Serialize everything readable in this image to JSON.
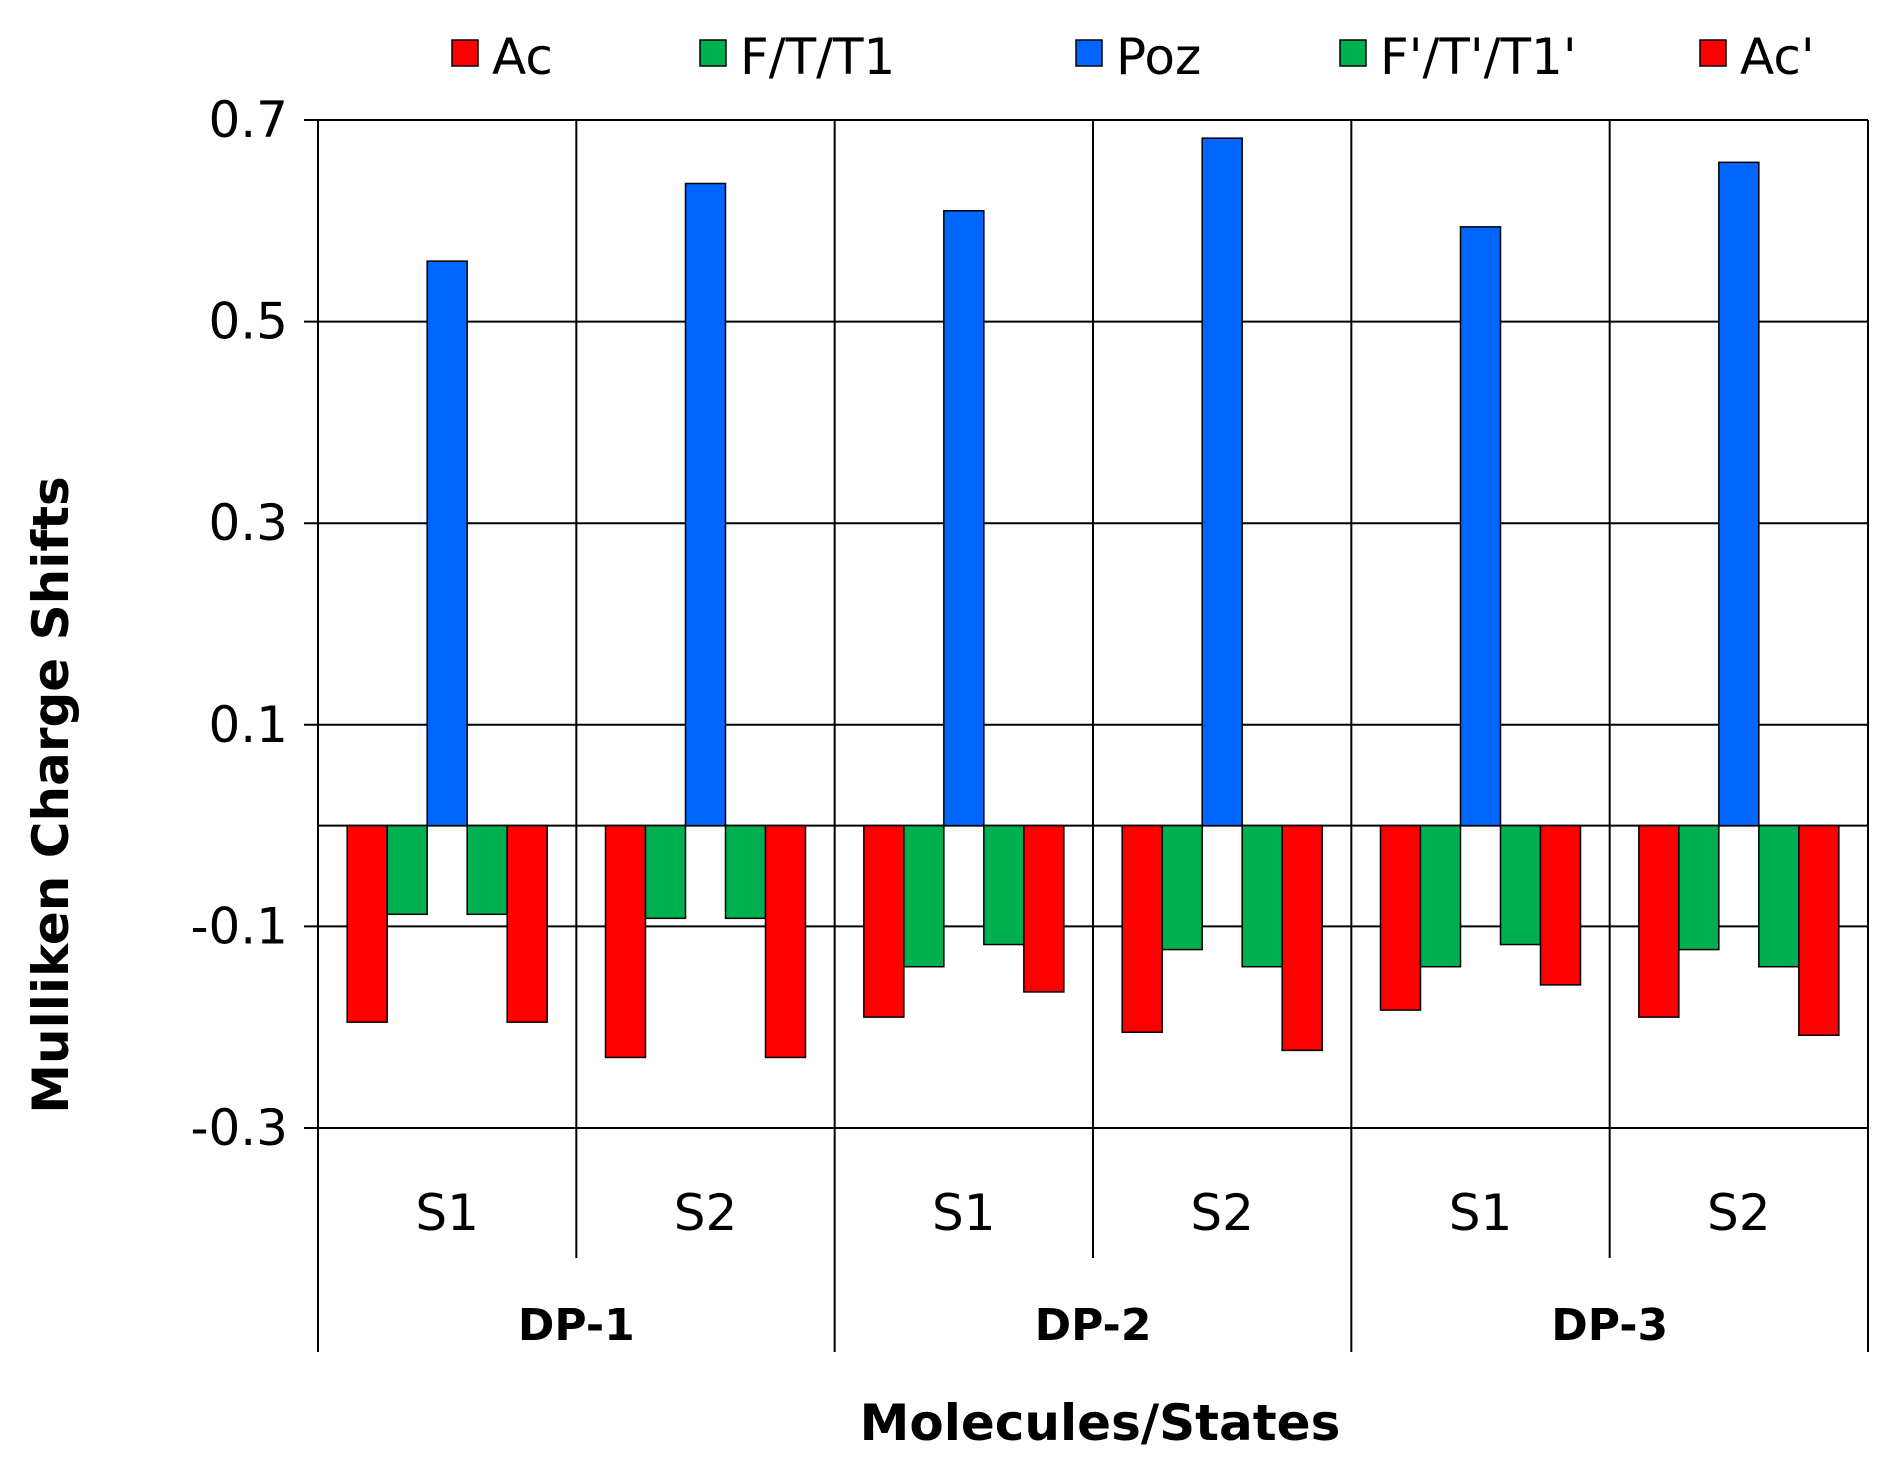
{
  "chart_data": {
    "type": "bar",
    "title": "",
    "xlabel": "Molecules/States",
    "ylabel": "Mulliken Charge Shifts",
    "ylim": [
      -0.3,
      0.7
    ],
    "yticks": [
      -0.3,
      -0.1,
      0.1,
      0.3,
      0.5,
      0.7
    ],
    "ytick_labels": [
      "-0.3",
      "-0.1",
      "0.1",
      "0.3",
      "0.5",
      "0.7"
    ],
    "legend_position": "top",
    "categories": [
      "S1",
      "S2",
      "S1",
      "S2",
      "S1",
      "S2"
    ],
    "groups": [
      {
        "label": "DP-1",
        "span": 2
      },
      {
        "label": "DP-2",
        "span": 2
      },
      {
        "label": "DP-3",
        "span": 2
      }
    ],
    "series": [
      {
        "name": "Ac",
        "color": "#ff0000",
        "values": [
          -0.195,
          -0.23,
          -0.19,
          -0.205,
          -0.183,
          -0.19
        ]
      },
      {
        "name": "F/T/T1",
        "color": "#00b050",
        "values": [
          -0.088,
          -0.092,
          -0.14,
          -0.123,
          -0.14,
          -0.123
        ]
      },
      {
        "name": "Poz",
        "color": "#0066ff",
        "values": [
          0.56,
          0.637,
          0.61,
          0.682,
          0.594,
          0.658
        ]
      },
      {
        "name": "F'/T'/T1'",
        "color": "#00b050",
        "values": [
          -0.088,
          -0.092,
          -0.118,
          -0.14,
          -0.118,
          -0.14
        ]
      },
      {
        "name": "Ac'",
        "color": "#ff0000",
        "values": [
          -0.195,
          -0.23,
          -0.165,
          -0.223,
          -0.158,
          -0.208
        ]
      }
    ]
  }
}
